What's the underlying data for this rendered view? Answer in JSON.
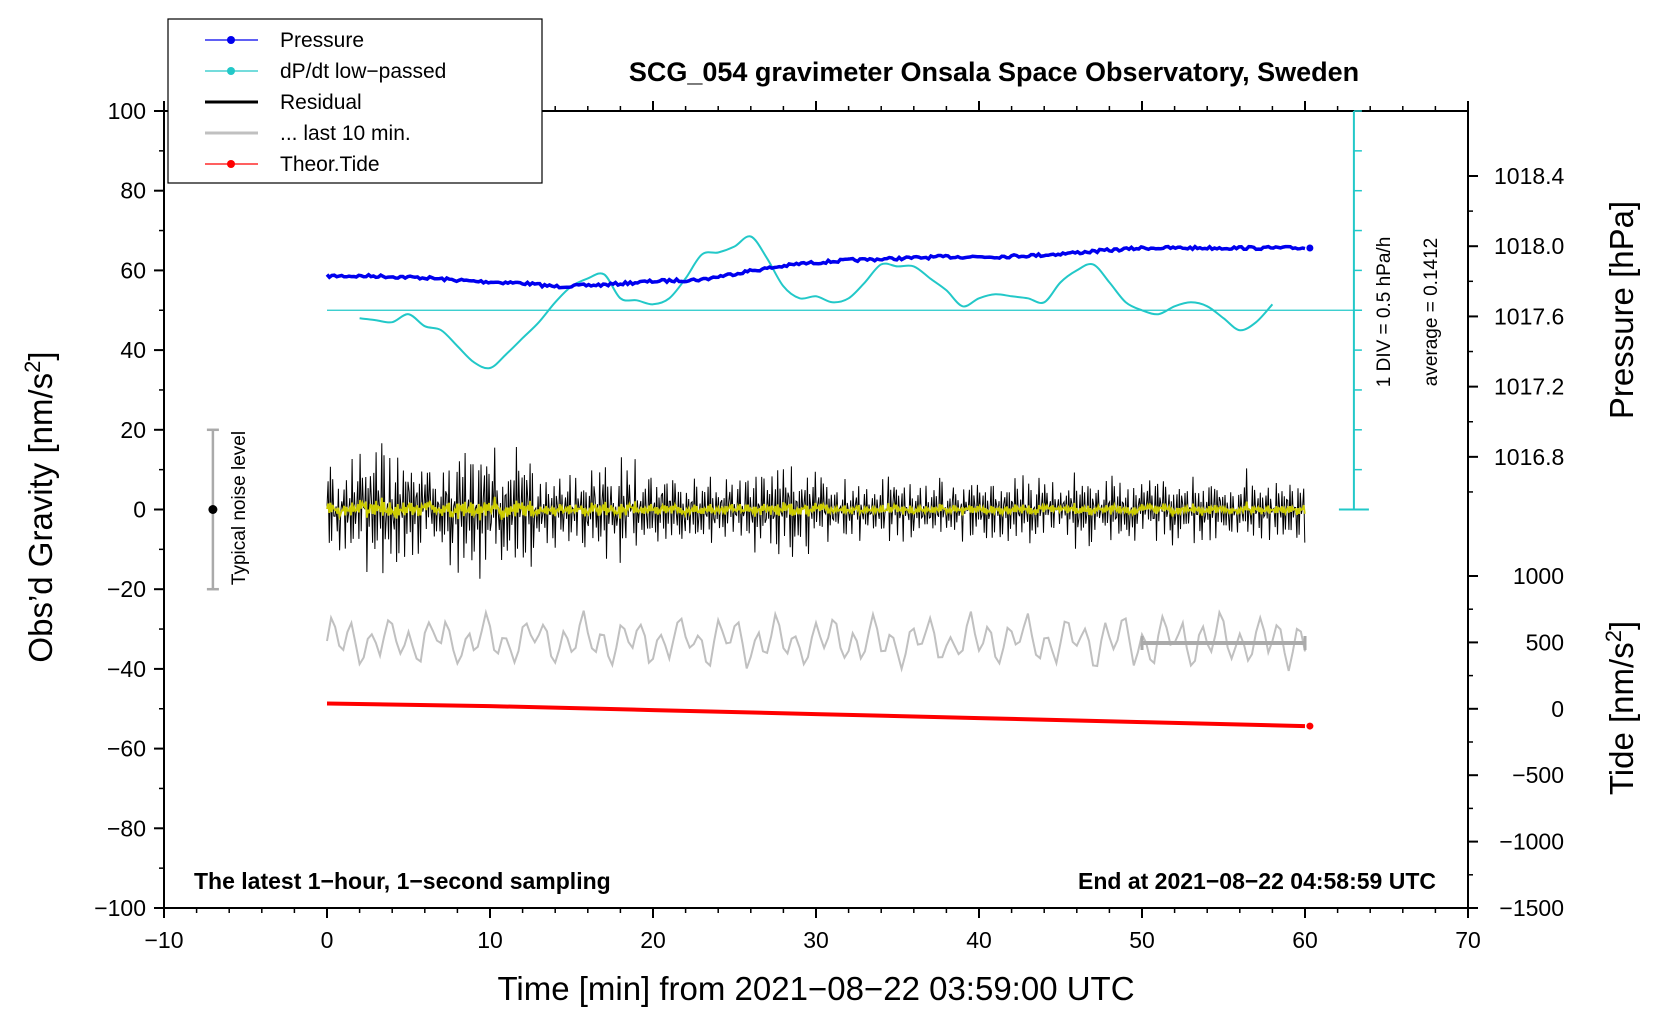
{
  "chart_data": {
    "type": "line",
    "title": "SCG_054 gravimeter Onsala Space Observatory, Sweden",
    "xlabel": "Time [min] from 2021−08−22 03:59:00 UTC",
    "ylabel_pre": "Obs’d Gravity [nm/s",
    "ylabel_sup": "2",
    "ylabel_post": "]",
    "y2label": "Pressure [hPa]",
    "y3label_pre": "Tide [nm/s",
    "y3label_sup": "2",
    "y3label_post": "]",
    "xlim": [
      -10,
      70
    ],
    "ylim": [
      -100,
      100
    ],
    "pressure_range": [
      1016.5,
      1018.4
    ],
    "tide_range": [
      -1500,
      1000
    ],
    "x_ticks": [
      -10,
      0,
      10,
      20,
      30,
      40,
      50,
      60,
      70
    ],
    "x_tick_labels": [
      "−10",
      "0",
      "10",
      "20",
      "30",
      "40",
      "50",
      "60",
      "70"
    ],
    "y_ticks": [
      100,
      80,
      60,
      40,
      20,
      0,
      -20,
      -40,
      -60,
      -80,
      -100
    ],
    "y_tick_labels": [
      "100",
      "80",
      "60",
      "40",
      "20",
      "0",
      "−20",
      "−40",
      "−60",
      "−80",
      "−100"
    ],
    "pressure_ticks": [
      1018.4,
      1018.0,
      1017.6,
      1017.2,
      1016.8
    ],
    "pressure_tick_labels": [
      "1018.4",
      "1018.0",
      "1017.6",
      "1017.2",
      "1016.8"
    ],
    "tide_ticks": [
      1000,
      500,
      0,
      -500,
      -1000,
      -1500
    ],
    "tide_tick_labels": [
      "1000",
      "500",
      "0",
      "−500",
      "−1000",
      "−1500"
    ],
    "legend": [
      {
        "label": "Pressure",
        "color": "#0000ee",
        "marker": true
      },
      {
        "label": "dP/dt low−passed",
        "color": "#22c8c8",
        "marker": true
      },
      {
        "label": "Residual",
        "color": "#000000",
        "marker": false
      },
      {
        "label": "... last 10 min.",
        "color": "#c0c0c0",
        "marker": false
      },
      {
        "label": "Theor.Tide",
        "color": "#ff0000",
        "marker": true
      }
    ],
    "colors": {
      "pressure": "#0000ee",
      "dpdt": "#22c8c8",
      "residual": "#000000",
      "residual_smooth": "#cccc00",
      "last10": "#c0c0c0",
      "tide": "#ff0000",
      "noise_bar": "#aaaaaa"
    },
    "series": [
      {
        "name": "Pressure",
        "unit": "hPa",
        "x": [
          0,
          3,
          6,
          9,
          12,
          14,
          17,
          20,
          23,
          26,
          29,
          32,
          35,
          38,
          41,
          44,
          47,
          50,
          53,
          56,
          60
        ],
        "values": [
          1017.83,
          1017.83,
          1017.82,
          1017.8,
          1017.79,
          1017.77,
          1017.78,
          1017.8,
          1017.81,
          1017.86,
          1017.9,
          1017.92,
          1017.93,
          1017.94,
          1017.94,
          1017.95,
          1017.97,
          1017.99,
          1017.99,
          1017.99,
          1017.99
        ]
      },
      {
        "name": "dP/dt low−passed",
        "plotted_in": "gravity axis units",
        "x": [
          2,
          3,
          4,
          5,
          6,
          7,
          8,
          9,
          10,
          11,
          12,
          13,
          14,
          15,
          16,
          17,
          18,
          19,
          20,
          21,
          22,
          23,
          24,
          25,
          26,
          27,
          28,
          29,
          30,
          31,
          32,
          33,
          34,
          35,
          36,
          37,
          38,
          39,
          40,
          41,
          42,
          43,
          44,
          45,
          46,
          47,
          48,
          49,
          50,
          51,
          52,
          53,
          54,
          55,
          56,
          57,
          58
        ],
        "values": [
          48,
          47.5,
          47,
          49,
          46,
          45,
          41,
          37,
          35.5,
          39,
          43,
          47,
          52,
          56,
          58,
          59,
          53,
          52.5,
          51.5,
          53,
          58,
          64,
          64.5,
          66,
          68.5,
          63,
          56,
          53,
          53.5,
          52,
          53,
          57,
          61.5,
          61,
          61,
          58,
          55,
          51,
          53,
          54,
          53.5,
          53,
          52,
          57,
          60,
          61.5,
          57,
          52,
          50,
          49,
          51,
          52,
          51,
          48,
          45,
          47,
          51.5
        ]
      },
      {
        "name": "Residual",
        "note": "1-second sampling, approx. amplitude envelope",
        "x": [
          0,
          2,
          3.5,
          5,
          7,
          9,
          11,
          13,
          15,
          17,
          20,
          23,
          26,
          29,
          32,
          35,
          40,
          45,
          50,
          55,
          60
        ],
        "values": [
          12,
          13,
          20,
          14,
          13,
          18,
          14,
          12,
          9,
          13,
          11,
          8,
          10,
          12,
          7,
          8,
          8,
          9,
          8,
          9,
          9
        ]
      },
      {
        "name": "... last 10 min.",
        "note": "smoothed residual; extent shown by bar from 50 to 60 min",
        "x": [
          50,
          60
        ],
        "values": [
          -33,
          -33
        ]
      },
      {
        "name": "Theor.Tide",
        "unit": "nm/s²",
        "x": [
          0,
          10,
          20,
          30,
          40,
          50,
          60
        ],
        "values": [
          40,
          20,
          -10,
          -40,
          -70,
          -100,
          -130
        ]
      }
    ],
    "noise_level": {
      "label": "Typical noise level",
      "x": -7,
      "center": 0,
      "half_range": 20
    },
    "annotations": {
      "div_label": "1 DIV = 0.5 hPa/h",
      "average_label": "average = 0.1412",
      "bottom_left": "The latest 1−hour, 1−second sampling",
      "bottom_right": "End at 2021−08−22 04:58:59 UTC"
    }
  }
}
